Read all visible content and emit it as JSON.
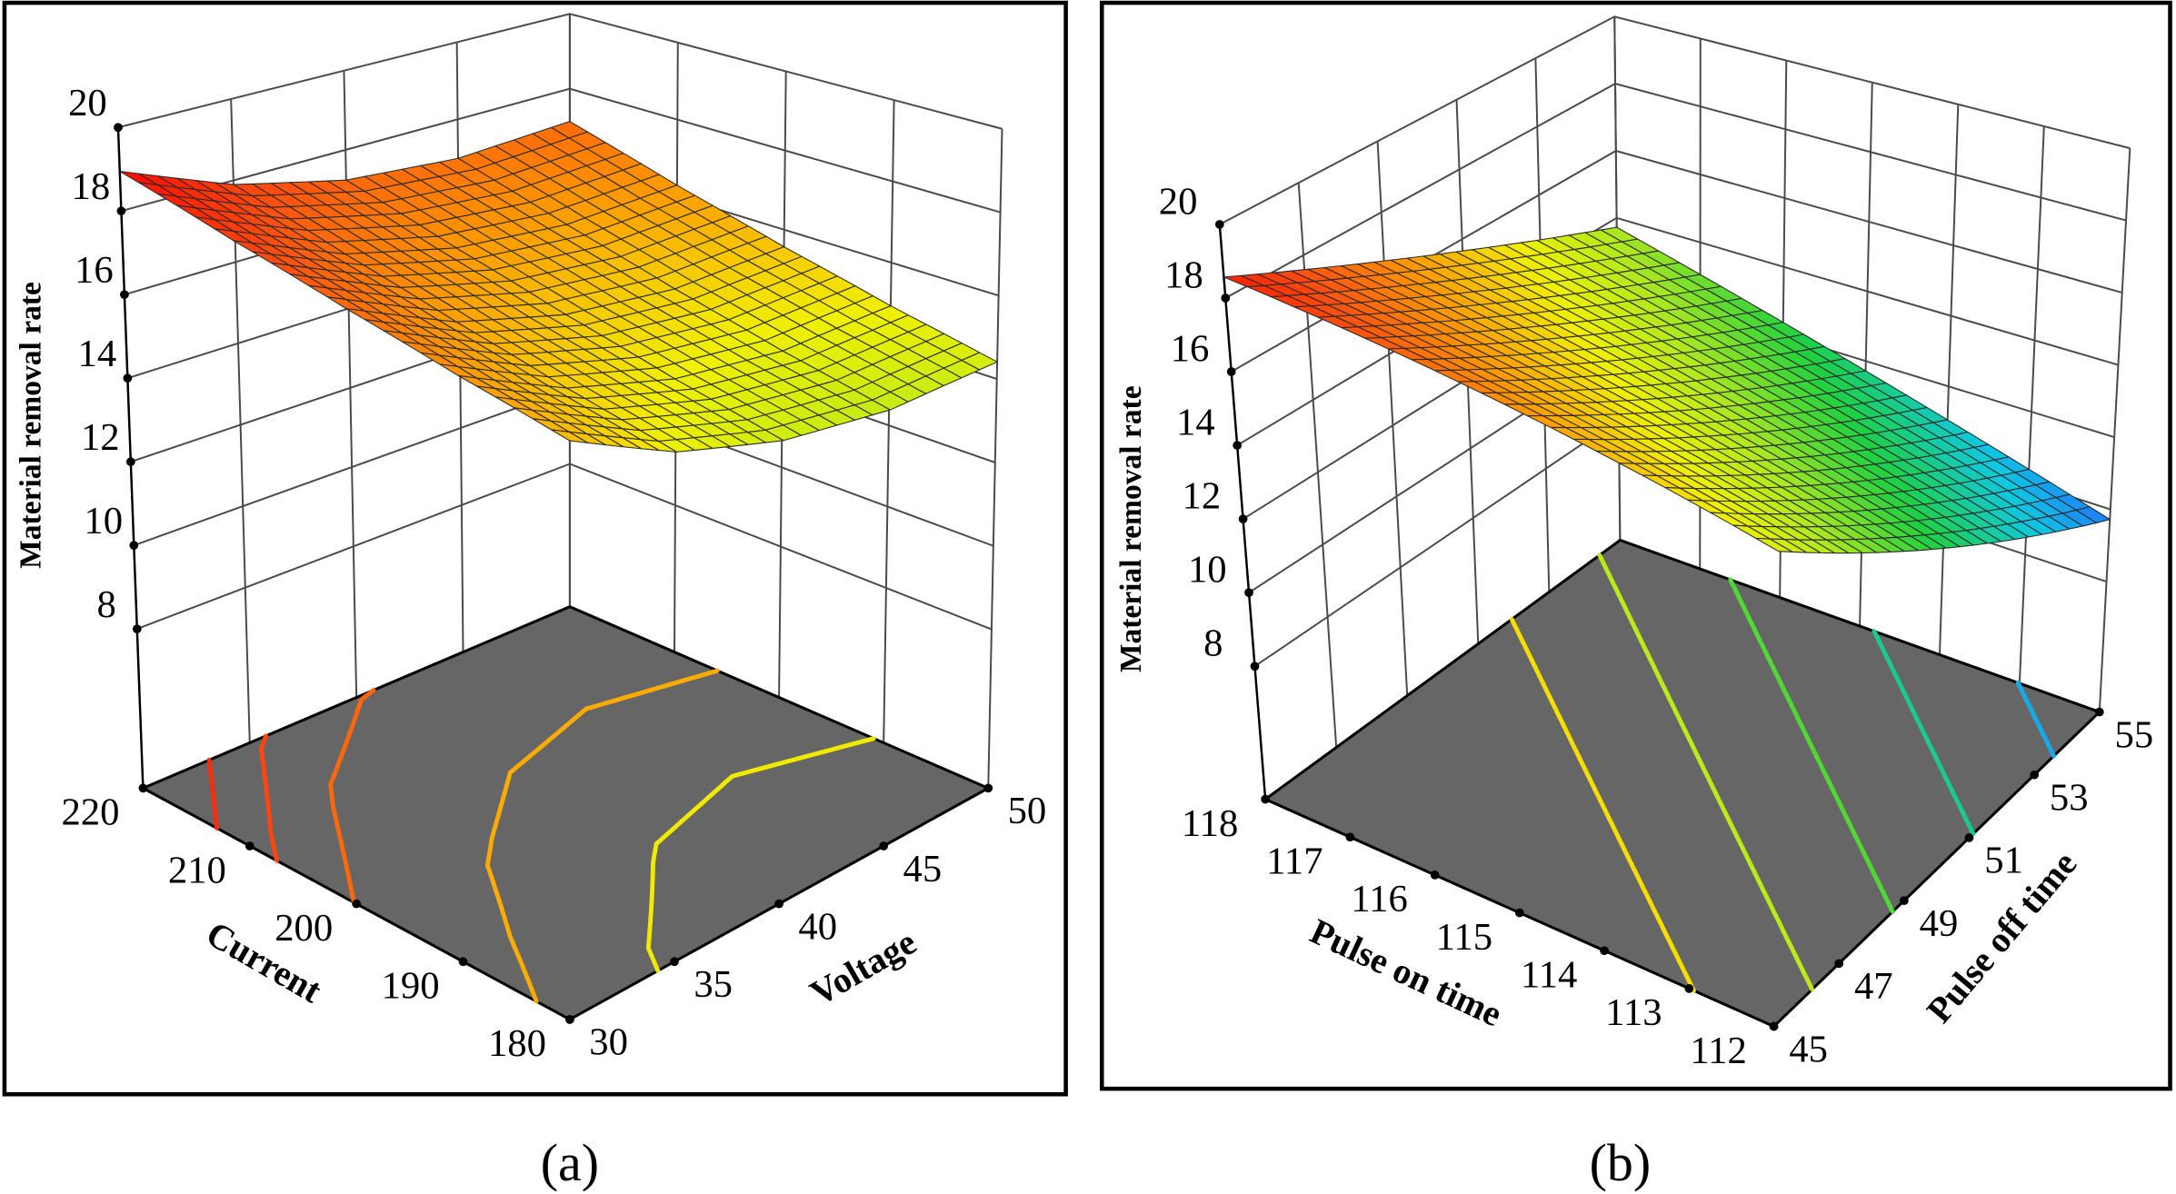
{
  "figure": {
    "captions": [
      "(a)",
      "(b)"
    ]
  },
  "chart_data": [
    {
      "type": "surface3d",
      "panel_label": "(a)",
      "xlabel": "Current",
      "ylabel": "Voltage",
      "zlabel": "Material removal rate",
      "x": [
        180,
        190,
        200,
        210,
        220
      ],
      "y": [
        30,
        35,
        40,
        45,
        50
      ],
      "z": [
        [
          15.8,
          14.85,
          14.31,
          14.16,
          14.41
        ],
        [
          16.44,
          15.46,
          14.89,
          14.71,
          14.94
        ],
        [
          17.18,
          16.17,
          15.57,
          15.37,
          15.57
        ],
        [
          18.01,
          16.98,
          16.36,
          16.13,
          16.3
        ],
        [
          18.95,
          17.9,
          17.24,
          16.99,
          17.13
        ]
      ],
      "xticks": [
        "180",
        "190",
        "200",
        "210",
        "220"
      ],
      "yticks": [
        "30",
        "35",
        "40",
        "45",
        "50"
      ],
      "zticks": [
        "8",
        "10",
        "12",
        "14",
        "16",
        "18",
        "20"
      ],
      "xticks_values": [
        180,
        190,
        200,
        210,
        220
      ],
      "yticks_values": [
        30,
        35,
        40,
        45,
        50
      ],
      "zticks_values": [
        8,
        10,
        12,
        14,
        16,
        18,
        20
      ],
      "zlim": [
        8,
        20
      ],
      "contour_levels": [
        18.3,
        17.8,
        17.2,
        16.0,
        15.0
      ],
      "contour_projection": "floor",
      "grid": true
    },
    {
      "type": "surface3d",
      "panel_label": "(b)",
      "xlabel": "Pulse on time",
      "ylabel": "Pulse off time",
      "zlabel": "Material removal rate",
      "x": [
        112,
        118
      ],
      "y": [
        45,
        55
      ],
      "z": [
        [
          14.57,
          9.72
        ],
        [
          18.57,
          13.72
        ]
      ],
      "xticks": [
        "112",
        "113",
        "114",
        "115",
        "116",
        "117",
        "118"
      ],
      "yticks": [
        "45",
        "47",
        "49",
        "51",
        "53",
        "55"
      ],
      "zticks": [
        "8",
        "10",
        "12",
        "14",
        "16",
        "18",
        "20"
      ],
      "xticks_values": [
        112,
        113,
        114,
        115,
        116,
        117,
        118
      ],
      "yticks_values": [
        45,
        47,
        49,
        51,
        53,
        55
      ],
      "zticks_values": [
        8,
        10,
        12,
        14,
        16,
        18,
        20
      ],
      "zlim": [
        8,
        20
      ],
      "contour_levels": [
        15.2,
        14.0,
        12.8,
        11.6,
        10.4
      ],
      "contour_projection": "floor",
      "grid": true
    }
  ],
  "colors": {
    "floor": "#666666",
    "mesh_line": "#2a2a2a",
    "wall_grid": "#4a4a4a",
    "colormap": [
      {
        "value": 9.7,
        "color": "#1f78ff"
      },
      {
        "value": 10.8,
        "color": "#10c8e0"
      },
      {
        "value": 12.3,
        "color": "#20d040"
      },
      {
        "value": 13.8,
        "color": "#b0e820"
      },
      {
        "value": 14.9,
        "color": "#f0f000"
      },
      {
        "value": 16.3,
        "color": "#ff9a00"
      },
      {
        "value": 17.6,
        "color": "#ff5010"
      },
      {
        "value": 18.8,
        "color": "#ff1000"
      }
    ]
  }
}
